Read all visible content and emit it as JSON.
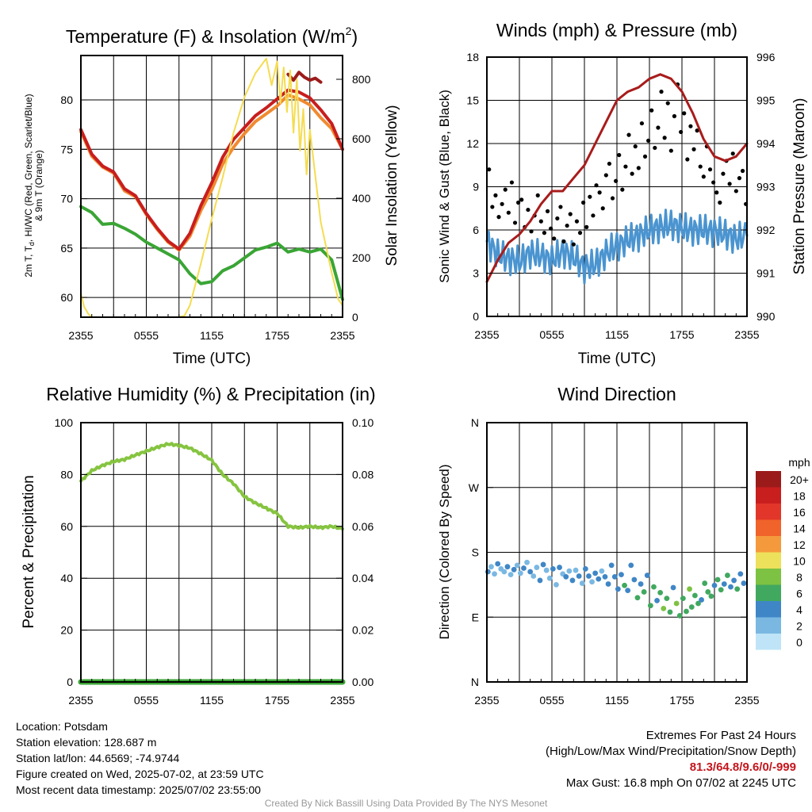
{
  "chart_data": [
    {
      "type": "line",
      "title": "Temperature (F) & Insolation (W/m",
      "title_sup": "2",
      "title_close": ")",
      "xlabel": "Time (UTC)",
      "ylabel_lines": [
        "2m T, T",
        "d",
        ", HI/WC (Red, Green, Scarlet/Blue)",
        "& 9m T (Orange)"
      ],
      "y2label": "Solar Insolation (Yellow)",
      "x_ticks": [
        "2355",
        "0555",
        "1155",
        "1755",
        "2355"
      ],
      "ylim": [
        58,
        84.5
      ],
      "y_ticks": [
        "60",
        "65",
        "70",
        "75",
        "80"
      ],
      "y_tick_values": [
        60,
        65,
        70,
        75,
        80
      ],
      "y2lim": [
        0,
        880
      ],
      "y2_ticks": [
        "0",
        "200",
        "400",
        "600",
        "800"
      ],
      "y2_tick_values": [
        0,
        200,
        400,
        600,
        800
      ],
      "grid": true,
      "series": [
        {
          "color": "#f08a30",
          "axis": "y",
          "width": 4,
          "x": [
            0,
            1,
            2,
            3,
            4,
            5,
            6,
            7,
            8,
            9,
            10,
            11,
            12,
            13,
            14,
            15,
            16,
            17,
            18,
            19,
            20,
            21,
            22,
            23,
            24
          ],
          "values": [
            76.8,
            74.3,
            73.2,
            72.6,
            70.8,
            70.2,
            68.4,
            66.9,
            65.6,
            64.8,
            66.2,
            68.8,
            70.9,
            73.5,
            75.2,
            76.6,
            77.8,
            78.6,
            79.4,
            80.5,
            80.1,
            79.5,
            78.2,
            77.1,
            75.0
          ]
        },
        {
          "color": "#c81e1e",
          "axis": "y",
          "width": 4,
          "x": [
            0,
            1,
            2,
            3,
            4,
            5,
            6,
            7,
            8,
            9,
            10,
            11,
            12,
            13,
            14,
            15,
            16,
            17,
            18,
            19,
            20,
            21,
            22,
            23,
            24
          ],
          "values": [
            77.0,
            74.5,
            73.3,
            72.7,
            71.0,
            70.3,
            68.5,
            67.0,
            65.7,
            64.9,
            66.5,
            69.3,
            71.6,
            74.2,
            76.0,
            77.2,
            78.4,
            79.2,
            80.1,
            81.0,
            80.8,
            80.2,
            79.0,
            77.6,
            75.0
          ]
        },
        {
          "color": "#9b1b1b",
          "axis": "y",
          "width": 4,
          "x": [
            19,
            19.5,
            20,
            20.5,
            21,
            21.5,
            22
          ],
          "values": [
            82.6,
            82.0,
            82.8,
            82.3,
            82.0,
            82.2,
            81.8
          ]
        },
        {
          "color": "#3aa535",
          "axis": "y",
          "width": 4,
          "x": [
            0,
            1,
            2,
            3,
            4,
            5,
            6,
            7,
            8,
            9,
            10,
            11,
            12,
            13,
            14,
            15,
            16,
            17,
            18,
            19,
            20,
            21,
            22,
            23,
            24
          ],
          "values": [
            69.2,
            68.6,
            67.4,
            67.5,
            67.0,
            66.4,
            65.6,
            65.0,
            64.4,
            63.8,
            62.4,
            61.4,
            61.6,
            62.7,
            63.2,
            64.0,
            64.8,
            65.1,
            65.5,
            64.6,
            64.9,
            64.6,
            64.9,
            63.8,
            59.8
          ]
        },
        {
          "color": "#f5dc50",
          "axis": "y2",
          "width": 2,
          "x": [
            0,
            0.3,
            0.7,
            1,
            2,
            4,
            6,
            8,
            9,
            9.5,
            10,
            11,
            12,
            13,
            14,
            15,
            16,
            17,
            17.5,
            18,
            18.3,
            18.6,
            18.9,
            19.2,
            19.5,
            19.8,
            20.1,
            20.4,
            20.7,
            21,
            22,
            23,
            23.6,
            24
          ],
          "values": [
            80,
            35,
            10,
            0,
            0,
            0,
            0,
            0,
            0,
            5,
            40,
            180,
            330,
            470,
            620,
            740,
            820,
            870,
            780,
            860,
            720,
            840,
            690,
            830,
            620,
            800,
            560,
            700,
            480,
            630,
            320,
            150,
            60,
            40
          ]
        }
      ]
    },
    {
      "type": "line",
      "title": "Winds (mph) & Pressure (mb)",
      "xlabel": "Time (UTC)",
      "ylabel": "Sonic Wind & Gust (Blue, Black)",
      "y2label": "Station Pressure (Maroon)",
      "x_ticks": [
        "2355",
        "0555",
        "1155",
        "1755",
        "2355"
      ],
      "ylim": [
        0,
        18
      ],
      "y_ticks": [
        "0",
        "3",
        "6",
        "9",
        "12",
        "15",
        "18"
      ],
      "y_tick_values": [
        0,
        3,
        6,
        9,
        12,
        15,
        18
      ],
      "y2lim": [
        990,
        996
      ],
      "y2_ticks": [
        "990",
        "991",
        "992",
        "993",
        "994",
        "995",
        "996"
      ],
      "y2_tick_values": [
        990,
        991,
        992,
        993,
        994,
        995,
        996
      ],
      "grid": true,
      "series": [
        {
          "name_hidden": "wind",
          "color": "#4a94d0",
          "axis": "y",
          "x": [
            0,
            1,
            2,
            3,
            4,
            5,
            6,
            7,
            8,
            9,
            10,
            11,
            12,
            13,
            14,
            15,
            16,
            17,
            18,
            19,
            20,
            21,
            22,
            23,
            24
          ],
          "values": [
            5.2,
            4.3,
            4.0,
            3.8,
            4.4,
            4.2,
            3.9,
            4.5,
            4.1,
            3.4,
            3.6,
            4.4,
            4.9,
            5.3,
            5.6,
            6.0,
            6.2,
            6.4,
            6.1,
            6.0,
            6.0,
            5.9,
            5.7,
            5.4,
            5.6
          ]
        },
        {
          "color": "#a81c1c",
          "axis": "y2",
          "x": [
            0,
            1,
            2,
            3,
            4,
            5,
            6,
            7,
            8,
            9,
            10,
            11,
            12,
            13,
            14,
            15,
            16,
            17,
            18,
            19,
            20,
            21,
            22,
            23,
            24
          ],
          "values": [
            990.8,
            991.3,
            991.7,
            991.9,
            992.2,
            992.6,
            992.9,
            992.9,
            993.2,
            993.5,
            994.0,
            994.5,
            995.0,
            995.2,
            995.3,
            995.5,
            995.6,
            995.5,
            995.2,
            994.7,
            994.1,
            993.7,
            993.6,
            993.7,
            994.0
          ]
        }
      ],
      "gust_points": {
        "x": [
          0.2,
          0.5,
          0.8,
          1.1,
          1.4,
          1.7,
          2.0,
          2.3,
          2.6,
          2.9,
          3.2,
          3.5,
          3.8,
          4.1,
          4.4,
          4.7,
          5.0,
          5.3,
          5.6,
          5.9,
          6.2,
          6.5,
          6.8,
          7.1,
          7.4,
          7.7,
          8.0,
          8.3,
          8.6,
          8.9,
          9.2,
          9.5,
          9.8,
          10.1,
          10.4,
          10.7,
          11.0,
          11.3,
          11.6,
          11.9,
          12.2,
          12.5,
          12.8,
          13.1,
          13.4,
          13.7,
          14.0,
          14.3,
          14.6,
          14.9,
          15.2,
          15.5,
          15.8,
          16.1,
          16.4,
          16.7,
          17.0,
          17.3,
          17.6,
          17.9,
          18.2,
          18.5,
          18.8,
          19.1,
          19.4,
          19.7,
          20.0,
          20.3,
          20.6,
          20.9,
          21.2,
          21.5,
          21.8,
          22.1,
          22.4,
          22.7,
          23.0,
          23.3,
          23.6,
          23.9
        ],
        "values": [
          10.2,
          7.6,
          8.4,
          6.9,
          7.8,
          8.8,
          7.2,
          9.3,
          6.5,
          7.9,
          8.1,
          6.2,
          7.4,
          5.9,
          7.0,
          8.4,
          6.6,
          5.8,
          7.3,
          6.1,
          5.4,
          6.8,
          7.6,
          5.2,
          6.3,
          7.1,
          5.0,
          6.6,
          5.8,
          7.9,
          6.2,
          8.3,
          7.0,
          9.1,
          8.6,
          7.5,
          9.8,
          10.6,
          8.2,
          9.4,
          11.2,
          8.8,
          10.4,
          12.6,
          9.9,
          11.8,
          10.3,
          13.4,
          11.1,
          12.2,
          14.3,
          11.7,
          13.1,
          15.6,
          12.4,
          14.8,
          11.5,
          13.9,
          16.1,
          12.8,
          14.1,
          10.9,
          13.2,
          11.6,
          12.9,
          10.4,
          9.7,
          11.8,
          10.2,
          9.3,
          8.6,
          7.9,
          9.9,
          10.8,
          9.2,
          11.3,
          8.7,
          9.6,
          10.1,
          7.8
        ]
      }
    },
    {
      "type": "line",
      "title": "Relative Humidity (%) & Precipitation (in)",
      "xlabel": "",
      "ylabel": "Percent & Precipitation",
      "x_ticks": [
        "2355",
        "0555",
        "1155",
        "1755",
        "2355"
      ],
      "ylim": [
        0,
        100
      ],
      "y_ticks": [
        "0",
        "20",
        "40",
        "60",
        "80",
        "100"
      ],
      "y_tick_values": [
        0,
        20,
        40,
        60,
        80,
        100
      ],
      "y2lim": [
        0,
        0.1
      ],
      "y2_ticks": [
        "0.00",
        "0.02",
        "0.04",
        "0.06",
        "0.08",
        "0.10"
      ],
      "y2_tick_values": [
        0,
        0.02,
        0.04,
        0.06,
        0.08,
        0.1
      ],
      "grid": true,
      "series": [
        {
          "color": "#86c440",
          "axis": "y",
          "width": 4,
          "x": [
            0,
            1,
            2,
            3,
            4,
            5,
            6,
            7,
            8,
            9,
            10,
            11,
            12,
            13,
            14,
            15,
            16,
            17,
            18,
            19,
            20,
            21,
            22,
            23,
            24
          ],
          "values": [
            77.5,
            81.5,
            83.5,
            85.0,
            85.8,
            87.5,
            89.0,
            90.5,
            91.8,
            91.2,
            90.2,
            88.0,
            85.5,
            80.0,
            76.5,
            71.5,
            69.0,
            67.0,
            65.0,
            60.0,
            59.5,
            60.0,
            59.5,
            60.0,
            59.0
          ]
        },
        {
          "color": "#3aa535",
          "axis": "y2",
          "width": 7,
          "x": [
            0,
            24
          ],
          "values": [
            0,
            0
          ]
        }
      ]
    },
    {
      "type": "scatter",
      "title": "Wind Direction",
      "xlabel": "",
      "ylabel": "Direction (Colored By Speed)",
      "x_ticks": [
        "2355",
        "0555",
        "1155",
        "1755",
        "2355"
      ],
      "y_ticks": [
        "N",
        "E",
        "S",
        "W",
        "N"
      ],
      "y_tick_values": [
        0,
        90,
        180,
        270,
        360
      ],
      "ylim": [
        0,
        360
      ],
      "grid": true,
      "points": {
        "x": [
          0.1,
          0.4,
          0.7,
          1.0,
          1.3,
          1.6,
          1.9,
          2.2,
          2.5,
          2.8,
          3.1,
          3.4,
          3.7,
          4.0,
          4.3,
          4.6,
          4.9,
          5.2,
          5.5,
          5.8,
          6.1,
          6.4,
          6.7,
          7.0,
          7.3,
          7.6,
          7.9,
          8.2,
          8.5,
          8.8,
          9.1,
          9.4,
          9.7,
          10.0,
          10.3,
          10.6,
          10.9,
          11.2,
          11.5,
          11.8,
          12.1,
          12.4,
          12.7,
          13.0,
          13.3,
          13.6,
          13.9,
          14.2,
          14.5,
          14.8,
          15.1,
          15.4,
          15.7,
          16.0,
          16.3,
          16.6,
          16.9,
          17.2,
          17.5,
          17.8,
          18.1,
          18.4,
          18.7,
          18.9,
          19.2,
          19.5,
          19.8,
          20.1,
          20.4,
          20.7,
          21.0,
          21.3,
          21.6,
          21.9,
          22.2,
          22.5,
          22.8,
          23.1,
          23.4,
          23.7
        ],
        "values": [
          207,
          200,
          210,
          196,
          203,
          207,
          200,
          211,
          204,
          198,
          209,
          202,
          194,
          207,
          213,
          201,
          219,
          197,
          205,
          216,
          203,
          225,
          201,
          210,
          214,
          206,
          219,
          205,
          213,
          223,
          203,
          213,
          221,
          209,
          217,
          206,
          214,
          224,
          198,
          214,
          231,
          211,
          226,
          233,
          198,
          218,
          243,
          224,
          235,
          212,
          254,
          228,
          247,
          236,
          258,
          244,
          263,
          229,
          251,
          268,
          244,
          262,
          231,
          256,
          240,
          251,
          246,
          223,
          235,
          241,
          226,
          218,
          232,
          224,
          212,
          228,
          219,
          231,
          210,
          223
        ],
        "speed": [
          4,
          2,
          3,
          4,
          2,
          3,
          4,
          2,
          4,
          3,
          2,
          4,
          3,
          4,
          2,
          3,
          4,
          4,
          3,
          2,
          4,
          3,
          4,
          3,
          4,
          2,
          4,
          3,
          4,
          3,
          4,
          4,
          3,
          4,
          4,
          3,
          5,
          4,
          4,
          5,
          4,
          4,
          6,
          4,
          4,
          5,
          6,
          4,
          7,
          4,
          6,
          7,
          5,
          6,
          8,
          6,
          7,
          5,
          9,
          6,
          7,
          6,
          8,
          7,
          6,
          7,
          5,
          6,
          7,
          6,
          5,
          7,
          6,
          4,
          6,
          5,
          4,
          6,
          5,
          4
        ]
      },
      "legend": {
        "title": "mph",
        "labels": [
          "20+",
          "18",
          "16",
          "14",
          "12",
          "10",
          "8",
          "6",
          "4",
          "2",
          "0"
        ],
        "colors": [
          "#9b1b1b",
          "#c81e1e",
          "#e2362a",
          "#f0632a",
          "#f59a3c",
          "#ede05a",
          "#7dc242",
          "#41a85f",
          "#3f86c6",
          "#7ab8e2",
          "#bfe4f7"
        ],
        "placement": "right"
      }
    }
  ],
  "info": {
    "location": "Location: Potsdam",
    "elevation": "Station elevation: 128.687 m",
    "latlon": "Station lat/lon: 44.6569; -74.9744",
    "created": "Figure created on Wed, 2025-07-02, at 23:59 UTC",
    "recent": "Most recent data timestamp: 2025/07/02 23:55:00"
  },
  "extremes": {
    "title": "Extremes For Past 24 Hours",
    "subtitle": "(High/Low/Max Wind/Precipitation/Snow Depth)",
    "values": "81.3/64.8/9.6/0/-999",
    "gust": "Max Gust: 16.8 mph On 07/02 at 2245 UTC"
  },
  "credit": "Created By Nick Bassill Using Data Provided By The NYS Mesonet"
}
